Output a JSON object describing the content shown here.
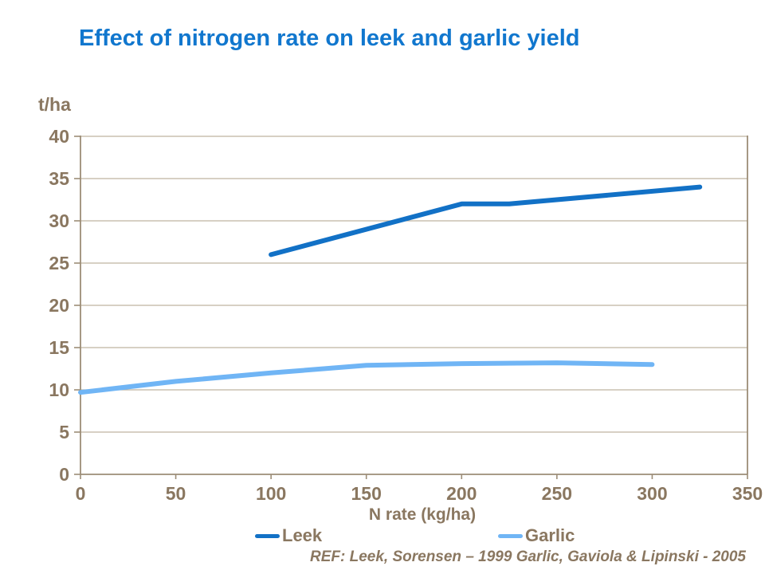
{
  "page": {
    "title": "Effect of nitrogen rate on leek and garlic yield",
    "ref_note": "REF: Leek, Sorensen – 1999 Garlic, Gaviola & Lipinski - 2005"
  },
  "colors": {
    "title": "#1177CE",
    "leek": "#1271C6",
    "garlic": "#70B5F5",
    "text": "#8A7760",
    "axis": "#9C8D77",
    "grid": "#BFB3A1",
    "background": "#FFFFFF"
  },
  "legend": {
    "items": [
      {
        "label": "Leek"
      },
      {
        "label": "Garlic"
      }
    ]
  },
  "chart_data": {
    "type": "line",
    "title": "Effect of nitrogen rate on leek and garlic yield",
    "xlabel": "N rate (kg/ha)",
    "ylabel": "t/ha",
    "xlim": [
      0,
      350
    ],
    "ylim": [
      0,
      40
    ],
    "x_ticks": [
      0,
      50,
      100,
      150,
      200,
      250,
      300,
      350
    ],
    "y_ticks": [
      0,
      5,
      10,
      15,
      20,
      25,
      30,
      35,
      40
    ],
    "grid": "horizontal",
    "legend_position": "bottom",
    "series": [
      {
        "name": "Leek",
        "color": "#1271C6",
        "points": [
          [
            100,
            26
          ],
          [
            200,
            32
          ],
          [
            225,
            32
          ],
          [
            325,
            34
          ]
        ]
      },
      {
        "name": "Garlic",
        "color": "#70B5F5",
        "points": [
          [
            0,
            9.7
          ],
          [
            50,
            11
          ],
          [
            100,
            12
          ],
          [
            150,
            12.9
          ],
          [
            200,
            13.1
          ],
          [
            250,
            13.2
          ],
          [
            300,
            13
          ]
        ]
      }
    ]
  }
}
